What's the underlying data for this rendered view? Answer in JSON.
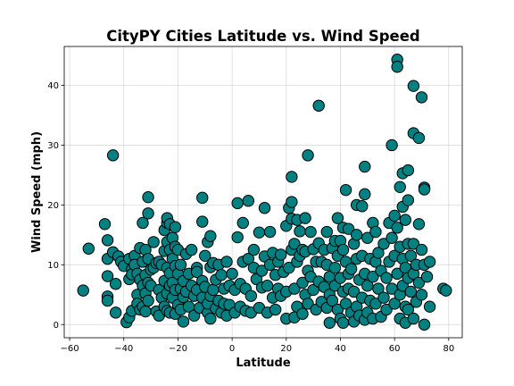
{
  "chart_data": {
    "type": "scatter",
    "title": "CityPY Cities Latitude vs. Wind Speed",
    "xlabel": "Latitude",
    "ylabel": "Wind Speed (mph)",
    "xlim": [
      -62,
      85
    ],
    "ylim": [
      -2.2,
      46.5
    ],
    "xticks": [
      -60,
      -40,
      -20,
      0,
      20,
      40,
      60,
      80
    ],
    "yticks": [
      0,
      10,
      20,
      30,
      40
    ],
    "grid": true,
    "marker_color": "#008080",
    "edge_color": "#000000",
    "series": [
      {
        "points": [
          [
            -55,
            5.7
          ],
          [
            -53,
            12.7
          ],
          [
            -47,
            16.8
          ],
          [
            -46,
            14.1
          ],
          [
            -46,
            11.0
          ],
          [
            -46,
            8.1
          ],
          [
            -46,
            4.7
          ],
          [
            -46,
            4.0
          ],
          [
            -44,
            28.3
          ],
          [
            -44,
            12.1
          ],
          [
            -43,
            6.8
          ],
          [
            -43,
            2.0
          ],
          [
            -42,
            11.4
          ],
          [
            -41,
            10.5
          ],
          [
            -40,
            9.8
          ],
          [
            -39,
            0.4
          ],
          [
            -38,
            11.0
          ],
          [
            -38,
            7.6
          ],
          [
            -38,
            1.2
          ],
          [
            -37,
            9.3
          ],
          [
            -37,
            8.4
          ],
          [
            -37,
            2.3
          ],
          [
            -36,
            11.5
          ],
          [
            -36,
            10.0
          ],
          [
            -35,
            8.5
          ],
          [
            -35,
            5.0
          ],
          [
            -35,
            3.5
          ],
          [
            -34,
            12.8
          ],
          [
            -34,
            7.5
          ],
          [
            -34,
            2.5
          ],
          [
            -33,
            17.0
          ],
          [
            -33,
            10.5
          ],
          [
            -33,
            6.5
          ],
          [
            -33,
            3.0
          ],
          [
            -32,
            12.5
          ],
          [
            -32,
            8.3
          ],
          [
            -32,
            5.2
          ],
          [
            -32,
            2.2
          ],
          [
            -31,
            21.3
          ],
          [
            -31,
            18.6
          ],
          [
            -31,
            11.0
          ],
          [
            -31,
            7.0
          ],
          [
            -31,
            4.0
          ],
          [
            -30,
            9.2
          ],
          [
            -30,
            6.5
          ],
          [
            -29,
            13.8
          ],
          [
            -29,
            9.5
          ],
          [
            -28,
            2.2
          ],
          [
            -28,
            10.3
          ],
          [
            -27,
            10.5
          ],
          [
            -27,
            5.8
          ],
          [
            -27,
            1.5
          ],
          [
            -26,
            10.0
          ],
          [
            -26,
            4.5
          ],
          [
            -25,
            15.8
          ],
          [
            -25,
            12.3
          ],
          [
            -25,
            7.3
          ],
          [
            -25,
            3.0
          ],
          [
            -24,
            17.0
          ],
          [
            -24,
            17.8
          ],
          [
            -24,
            13.8
          ],
          [
            -24,
            9.5
          ],
          [
            -24,
            5.2
          ],
          [
            -24,
            2.3
          ],
          [
            -23,
            16.8
          ],
          [
            -23,
            12.5
          ],
          [
            -23,
            8.6
          ],
          [
            -23,
            6.5
          ],
          [
            -23,
            2.0
          ],
          [
            -22,
            14.5
          ],
          [
            -22,
            11.0
          ],
          [
            -22,
            7.0
          ],
          [
            -22,
            4.5
          ],
          [
            -21,
            16.3
          ],
          [
            -21,
            13.0
          ],
          [
            -21,
            9.8
          ],
          [
            -21,
            5.8
          ],
          [
            -21,
            1.8
          ],
          [
            -20,
            12.5
          ],
          [
            -20,
            8.5
          ],
          [
            -20,
            3.3
          ],
          [
            -19,
            10.0
          ],
          [
            -19,
            6.0
          ],
          [
            -19,
            2.5
          ],
          [
            -18,
            7.3
          ],
          [
            -18,
            4.6
          ],
          [
            -18,
            0.5
          ],
          [
            -17,
            11.8
          ],
          [
            -17,
            5.5
          ],
          [
            -16,
            8.5
          ],
          [
            -16,
            3.0
          ],
          [
            -15,
            12.5
          ],
          [
            -15,
            6.5
          ],
          [
            -14,
            1.5
          ],
          [
            -14,
            4.8
          ],
          [
            -13,
            9.5
          ],
          [
            -13,
            8.8
          ],
          [
            -13,
            5.8
          ],
          [
            -12,
            2.8
          ],
          [
            -11,
            21.2
          ],
          [
            -11,
            17.2
          ],
          [
            -11,
            7.3
          ],
          [
            -11,
            4.5
          ],
          [
            -10,
            11.5
          ],
          [
            -10,
            6.3
          ],
          [
            -9,
            13.8
          ],
          [
            -9,
            2.0
          ],
          [
            -9,
            3.5
          ],
          [
            -8,
            14.8
          ],
          [
            -8,
            9.6
          ],
          [
            -8,
            4.8
          ],
          [
            -8,
            1.0
          ],
          [
            -7,
            10.3
          ],
          [
            -7,
            5.8
          ],
          [
            -6,
            7.5
          ],
          [
            -6,
            2.7
          ],
          [
            -5,
            10.0
          ],
          [
            -5,
            4.0
          ],
          [
            -4,
            8.3
          ],
          [
            -4,
            2.0
          ],
          [
            -3,
            6.0
          ],
          [
            -3,
            3.5
          ],
          [
            -2,
            10.5
          ],
          [
            -2,
            1.5
          ],
          [
            -1,
            6.5
          ],
          [
            -1,
            3.3
          ],
          [
            0,
            8.5
          ],
          [
            1,
            2.0
          ],
          [
            1,
            5.8
          ],
          [
            2,
            14.6
          ],
          [
            2,
            20.3
          ],
          [
            3,
            6.8
          ],
          [
            3,
            3.0
          ],
          [
            4,
            10.5
          ],
          [
            4,
            17.0
          ],
          [
            5,
            2.3
          ],
          [
            5,
            6.0
          ],
          [
            6,
            20.7
          ],
          [
            6,
            11.0
          ],
          [
            7,
            2.0
          ],
          [
            7,
            4.8
          ],
          [
            8,
            12.5
          ],
          [
            8,
            9.5
          ],
          [
            9,
            7.6
          ],
          [
            10,
            15.4
          ],
          [
            10,
            2.8
          ],
          [
            11,
            9.0
          ],
          [
            11,
            6.2
          ],
          [
            12,
            19.5
          ],
          [
            12,
            11.4
          ],
          [
            13,
            2.0
          ],
          [
            13,
            6.5
          ],
          [
            14,
            15.5
          ],
          [
            14,
            10.0
          ],
          [
            15,
            12.0
          ],
          [
            15,
            4.5
          ],
          [
            16,
            8.3
          ],
          [
            16,
            2.5
          ],
          [
            17,
            10.5
          ],
          [
            17,
            6.0
          ],
          [
            18,
            11.7
          ],
          [
            18,
            4.8
          ],
          [
            19,
            8.8
          ],
          [
            20,
            1.0
          ],
          [
            20,
            5.5
          ],
          [
            20,
            16.5
          ],
          [
            21,
            19.5
          ],
          [
            21,
            9.5
          ],
          [
            22,
            24.7
          ],
          [
            22,
            20.5
          ],
          [
            22,
            17.7
          ],
          [
            22,
            12.5
          ],
          [
            23,
            13.5
          ],
          [
            23,
            1.2
          ],
          [
            23,
            6.0
          ],
          [
            24,
            17.5
          ],
          [
            24,
            10.5
          ],
          [
            24,
            3.0
          ],
          [
            25,
            15.6
          ],
          [
            25,
            11.5
          ],
          [
            26,
            12.5
          ],
          [
            26,
            7.0
          ],
          [
            26,
            1.8
          ],
          [
            27,
            17.8
          ],
          [
            27,
            12.2
          ],
          [
            27,
            5.0
          ],
          [
            28,
            28.3
          ],
          [
            28,
            9.0
          ],
          [
            28,
            3.5
          ],
          [
            29,
            15.5
          ],
          [
            29,
            8.0
          ],
          [
            30,
            12.6
          ],
          [
            30,
            5.8
          ],
          [
            31,
            10.5
          ],
          [
            31,
            2.5
          ],
          [
            32,
            36.6
          ],
          [
            32,
            13.6
          ],
          [
            32,
            7.2
          ],
          [
            33,
            10.5
          ],
          [
            33,
            3.8
          ],
          [
            34,
            12.5
          ],
          [
            34,
            6.3
          ],
          [
            35,
            15.5
          ],
          [
            35,
            10.0
          ],
          [
            35,
            2.8
          ],
          [
            36,
            8.0
          ],
          [
            36,
            5.0
          ],
          [
            36,
            0.3
          ],
          [
            37,
            12.8
          ],
          [
            37,
            4.0
          ],
          [
            38,
            14.0
          ],
          [
            38,
            9.5
          ],
          [
            38,
            6.5
          ],
          [
            39,
            17.8
          ],
          [
            39,
            11.5
          ],
          [
            39,
            2.5
          ],
          [
            40,
            14.0
          ],
          [
            40,
            7.8
          ],
          [
            40,
            1.0
          ],
          [
            41,
            16.2
          ],
          [
            41,
            12.5
          ],
          [
            41,
            5.5
          ],
          [
            41,
            0.3
          ],
          [
            42,
            22.5
          ],
          [
            42,
            10.5
          ],
          [
            42,
            3.5
          ],
          [
            43,
            16.0
          ],
          [
            43,
            8.5
          ],
          [
            43,
            6.0
          ],
          [
            44,
            9.3
          ],
          [
            44,
            2.0
          ],
          [
            45,
            13.5
          ],
          [
            45,
            5.5
          ],
          [
            45,
            0.5
          ],
          [
            46,
            20.0
          ],
          [
            46,
            15.0
          ],
          [
            46,
            11.0
          ],
          [
            46,
            3.0
          ],
          [
            47,
            7.5
          ],
          [
            47,
            1.5
          ],
          [
            48,
            19.8
          ],
          [
            48,
            11.5
          ],
          [
            48,
            4.5
          ],
          [
            49,
            26.4
          ],
          [
            49,
            21.8
          ],
          [
            49,
            8.5
          ],
          [
            49,
            0.8
          ],
          [
            50,
            14.5
          ],
          [
            50,
            6.5
          ],
          [
            50,
            2.0
          ],
          [
            51,
            11.0
          ],
          [
            51,
            4.0
          ],
          [
            52,
            17.0
          ],
          [
            52,
            8.0
          ],
          [
            52,
            1.0
          ],
          [
            53,
            15.5
          ],
          [
            53,
            10.5
          ],
          [
            53,
            3.5
          ],
          [
            54,
            12.0
          ],
          [
            54,
            6.0
          ],
          [
            55,
            9.0
          ],
          [
            55,
            1.3
          ],
          [
            56,
            13.5
          ],
          [
            56,
            4.5
          ],
          [
            57,
            7.8
          ],
          [
            57,
            2.5
          ],
          [
            58,
            17.0
          ],
          [
            58,
            10.5
          ],
          [
            59,
            30.0
          ],
          [
            59,
            14.5
          ],
          [
            59,
            6.0
          ],
          [
            60,
            18.2
          ],
          [
            60,
            11.5
          ],
          [
            60,
            3.5
          ],
          [
            61,
            44.3
          ],
          [
            61,
            43.1
          ],
          [
            61,
            16.2
          ],
          [
            61,
            8.5
          ],
          [
            62,
            23.0
          ],
          [
            62,
            13.0
          ],
          [
            62,
            5.0
          ],
          [
            62,
            1.0
          ],
          [
            63,
            25.3
          ],
          [
            63,
            19.7
          ],
          [
            63,
            11.0
          ],
          [
            63,
            6.5
          ],
          [
            64,
            17.5
          ],
          [
            64,
            9.5
          ],
          [
            64,
            3.0
          ],
          [
            64,
            0.3
          ],
          [
            65,
            25.8
          ],
          [
            65,
            20.8
          ],
          [
            65,
            13.5
          ],
          [
            65,
            7.8
          ],
          [
            65,
            2.5
          ],
          [
            66,
            11.5
          ],
          [
            66,
            5.5
          ],
          [
            67,
            39.9
          ],
          [
            67,
            32.0
          ],
          [
            67,
            13.5
          ],
          [
            67,
            8.5
          ],
          [
            67,
            1.0
          ],
          [
            68,
            10.0
          ],
          [
            68,
            3.8
          ],
          [
            69,
            31.2
          ],
          [
            69,
            16.8
          ],
          [
            69,
            7.0
          ],
          [
            70,
            38.0
          ],
          [
            70,
            12.5
          ],
          [
            70,
            5.0
          ],
          [
            71,
            22.9
          ],
          [
            71,
            22.6
          ],
          [
            71,
            10.0
          ],
          [
            71,
            0.0
          ],
          [
            72,
            8.0
          ],
          [
            73,
            10.5
          ],
          [
            73,
            3.0
          ],
          [
            78,
            6.0
          ],
          [
            79,
            5.7
          ]
        ]
      }
    ]
  }
}
